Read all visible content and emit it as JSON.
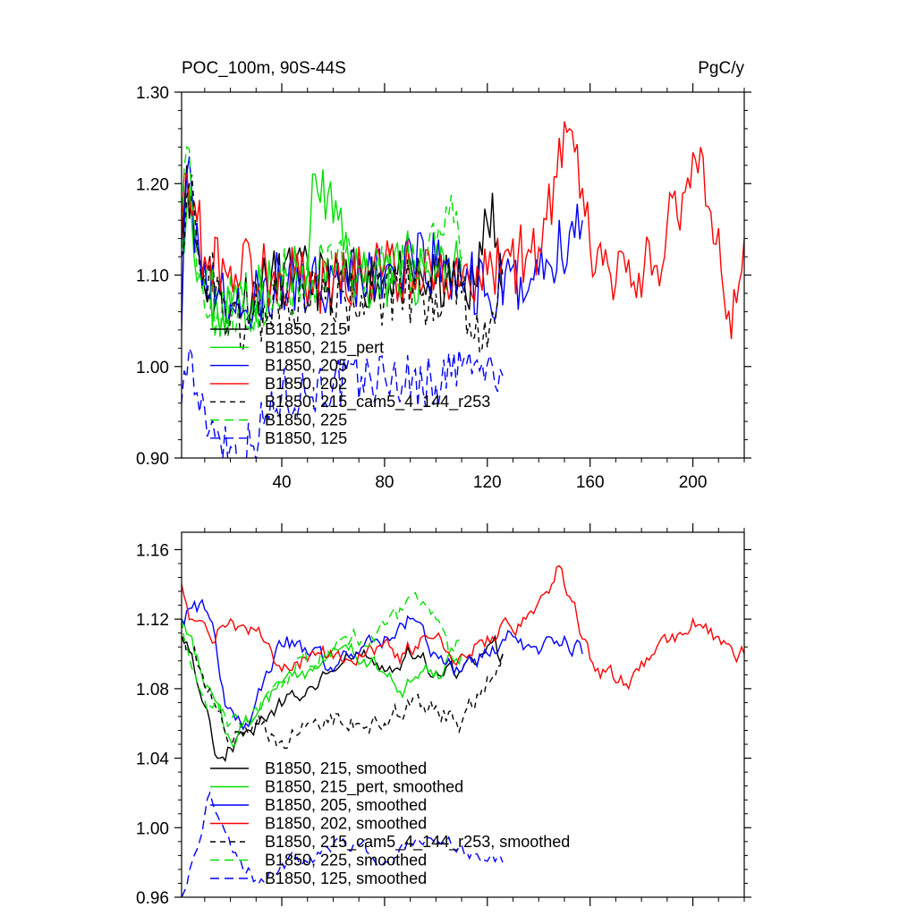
{
  "chart_data": [
    {
      "type": "line",
      "title": "POC_100m, 90S-44S",
      "units": "PgC/y",
      "xlabel": "",
      "ylabel": "",
      "xlim": [
        1,
        220
      ],
      "ylim": [
        0.9,
        1.3
      ],
      "xticks": [
        40,
        80,
        120,
        160,
        200
      ],
      "yticks": [
        0.9,
        1.0,
        1.1,
        1.2,
        1.3
      ],
      "ytick_labels": [
        "0.90",
        "1.00",
        "1.10",
        "1.20",
        "1.30"
      ],
      "legend_position": "bottom-left",
      "series": [
        {
          "name": "B1850, 215",
          "color": "#000000",
          "dash": "solid",
          "length": 126,
          "base": 1.1,
          "amp": 0.035,
          "seed": 11,
          "anchors": [
            [
              1,
              1.13
            ],
            [
              3,
              1.22
            ],
            [
              6,
              1.14
            ],
            [
              12,
              1.08
            ],
            [
              20,
              1.06
            ],
            [
              30,
              1.09
            ],
            [
              45,
              1.1
            ],
            [
              60,
              1.09
            ],
            [
              80,
              1.1
            ],
            [
              100,
              1.09
            ],
            [
              115,
              1.09
            ],
            [
              122,
              1.19
            ],
            [
              126,
              1.08
            ]
          ]
        },
        {
          "name": "B1850, 215_pert",
          "color": "#00e000",
          "dash": "solid",
          "length": 110,
          "base": 1.1,
          "amp": 0.038,
          "seed": 23,
          "anchors": [
            [
              1,
              1.14
            ],
            [
              4,
              1.2
            ],
            [
              8,
              1.1
            ],
            [
              15,
              1.06
            ],
            [
              25,
              1.07
            ],
            [
              40,
              1.09
            ],
            [
              50,
              1.1
            ],
            [
              53,
              1.21
            ],
            [
              70,
              1.1
            ],
            [
              90,
              1.1
            ],
            [
              110,
              1.12
            ]
          ]
        },
        {
          "name": "B1850, 205",
          "color": "#0000ff",
          "dash": "solid",
          "length": 157,
          "base": 1.1,
          "amp": 0.04,
          "seed": 37,
          "anchors": [
            [
              1,
              1.04
            ],
            [
              3,
              1.21
            ],
            [
              8,
              1.12
            ],
            [
              15,
              1.08
            ],
            [
              25,
              1.06
            ],
            [
              40,
              1.09
            ],
            [
              60,
              1.1
            ],
            [
              80,
              1.1
            ],
            [
              100,
              1.11
            ],
            [
              120,
              1.08
            ],
            [
              140,
              1.1
            ],
            [
              157,
              1.16
            ]
          ]
        },
        {
          "name": "B1850, 202",
          "color": "#ff0000",
          "dash": "solid",
          "length": 220,
          "base": 1.105,
          "amp": 0.038,
          "seed": 53,
          "anchors": [
            [
              1,
              1.14
            ],
            [
              3,
              1.21
            ],
            [
              10,
              1.12
            ],
            [
              20,
              1.11
            ],
            [
              40,
              1.1
            ],
            [
              60,
              1.09
            ],
            [
              80,
              1.11
            ],
            [
              100,
              1.1
            ],
            [
              120,
              1.1
            ],
            [
              140,
              1.13
            ],
            [
              152,
              1.26
            ],
            [
              160,
              1.13
            ],
            [
              170,
              1.09
            ],
            [
              185,
              1.11
            ],
            [
              203,
              1.24
            ],
            [
              215,
              1.03
            ],
            [
              220,
              1.14
            ]
          ]
        },
        {
          "name": "B1850, 215_cam5_4_144_r253",
          "color": "#000000",
          "dash": "6,5",
          "length": 126,
          "base": 1.085,
          "amp": 0.04,
          "seed": 71,
          "anchors": [
            [
              1,
              1.12
            ],
            [
              4,
              1.2
            ],
            [
              10,
              1.1
            ],
            [
              20,
              1.05
            ],
            [
              35,
              1.06
            ],
            [
              50,
              1.07
            ],
            [
              65,
              1.07
            ],
            [
              80,
              1.08
            ],
            [
              95,
              1.08
            ],
            [
              110,
              1.08
            ],
            [
              118,
              1.02
            ],
            [
              126,
              1.1
            ]
          ]
        },
        {
          "name": "B1850, 225",
          "color": "#00e000",
          "dash": "10,6",
          "length": 110,
          "base": 1.095,
          "amp": 0.04,
          "seed": 89,
          "anchors": [
            [
              1,
              1.16
            ],
            [
              3,
              1.24
            ],
            [
              8,
              1.1
            ],
            [
              15,
              1.06
            ],
            [
              25,
              1.07
            ],
            [
              40,
              1.09
            ],
            [
              60,
              1.1
            ],
            [
              80,
              1.11
            ],
            [
              100,
              1.12
            ],
            [
              108,
              1.17
            ],
            [
              110,
              1.1
            ]
          ]
        },
        {
          "name": "B1850, 125",
          "color": "#0000ff",
          "dash": "10,6",
          "length": 126,
          "base": 0.985,
          "amp": 0.03,
          "seed": 97,
          "anchors": [
            [
              1,
              0.96
            ],
            [
              4,
              1.02
            ],
            [
              8,
              0.95
            ],
            [
              15,
              0.93
            ],
            [
              24,
              0.9
            ],
            [
              40,
              0.97
            ],
            [
              60,
              0.98
            ],
            [
              80,
              0.99
            ],
            [
              100,
              0.98
            ],
            [
              110,
              1.0
            ],
            [
              126,
              0.99
            ]
          ]
        }
      ]
    },
    {
      "type": "line",
      "title": "",
      "xlabel": "",
      "ylabel": "",
      "xlim": [
        1,
        220
      ],
      "ylim": [
        0.96,
        1.17
      ],
      "xticks": [
        40,
        80,
        120,
        160,
        200
      ],
      "yticks": [
        0.96,
        1.0,
        1.04,
        1.08,
        1.12,
        1.16
      ],
      "ytick_labels": [
        "0.96",
        "1.00",
        "1.04",
        "1.08",
        "1.12",
        "1.16"
      ],
      "legend_position": "bottom-left",
      "series": [
        {
          "name": "B1850, 215, smoothed",
          "color": "#000000",
          "dash": "solid",
          "length": 126,
          "amp": 0.008,
          "seed": 5,
          "anchors": [
            [
              1,
              1.11
            ],
            [
              5,
              1.1
            ],
            [
              10,
              1.07
            ],
            [
              15,
              1.04
            ],
            [
              22,
              1.05
            ],
            [
              30,
              1.06
            ],
            [
              40,
              1.07
            ],
            [
              50,
              1.08
            ],
            [
              60,
              1.09
            ],
            [
              70,
              1.1
            ],
            [
              80,
              1.09
            ],
            [
              90,
              1.1
            ],
            [
              100,
              1.09
            ],
            [
              110,
              1.09
            ],
            [
              118,
              1.1
            ],
            [
              123,
              1.11
            ],
            [
              126,
              1.1
            ]
          ]
        },
        {
          "name": "B1850, 215_pert, smoothed",
          "color": "#00e000",
          "dash": "solid",
          "length": 110,
          "amp": 0.007,
          "seed": 15,
          "anchors": [
            [
              1,
              1.12
            ],
            [
              6,
              1.1
            ],
            [
              12,
              1.08
            ],
            [
              20,
              1.05
            ],
            [
              28,
              1.06
            ],
            [
              38,
              1.08
            ],
            [
              48,
              1.09
            ],
            [
              58,
              1.1
            ],
            [
              68,
              1.1
            ],
            [
              78,
              1.09
            ],
            [
              88,
              1.08
            ],
            [
              95,
              1.09
            ],
            [
              100,
              1.09
            ],
            [
              105,
              1.1
            ],
            [
              110,
              1.1
            ]
          ]
        },
        {
          "name": "B1850, 205, smoothed",
          "color": "#0000ff",
          "dash": "solid",
          "length": 157,
          "amp": 0.008,
          "seed": 25,
          "anchors": [
            [
              1,
              1.12
            ],
            [
              6,
              1.13
            ],
            [
              12,
              1.12
            ],
            [
              18,
              1.07
            ],
            [
              26,
              1.06
            ],
            [
              34,
              1.09
            ],
            [
              42,
              1.11
            ],
            [
              50,
              1.1
            ],
            [
              60,
              1.09
            ],
            [
              70,
              1.1
            ],
            [
              80,
              1.11
            ],
            [
              90,
              1.12
            ],
            [
              100,
              1.1
            ],
            [
              110,
              1.09
            ],
            [
              120,
              1.1
            ],
            [
              130,
              1.11
            ],
            [
              140,
              1.1
            ],
            [
              150,
              1.11
            ],
            [
              157,
              1.1
            ]
          ]
        },
        {
          "name": "B1850, 202, smoothed",
          "color": "#ff0000",
          "dash": "solid",
          "length": 220,
          "amp": 0.008,
          "seed": 35,
          "anchors": [
            [
              1,
              1.14
            ],
            [
              5,
              1.12
            ],
            [
              12,
              1.11
            ],
            [
              20,
              1.12
            ],
            [
              32,
              1.11
            ],
            [
              40,
              1.09
            ],
            [
              55,
              1.1
            ],
            [
              70,
              1.1
            ],
            [
              85,
              1.1
            ],
            [
              100,
              1.11
            ],
            [
              110,
              1.1
            ],
            [
              120,
              1.11
            ],
            [
              135,
              1.12
            ],
            [
              145,
              1.14
            ],
            [
              147,
              1.15
            ],
            [
              153,
              1.13
            ],
            [
              162,
              1.09
            ],
            [
              175,
              1.08
            ],
            [
              185,
              1.1
            ],
            [
              200,
              1.12
            ],
            [
              210,
              1.11
            ],
            [
              220,
              1.1
            ]
          ]
        },
        {
          "name": "B1850, 215_cam5_4_144_r253, smoothed",
          "color": "#000000",
          "dash": "6,5",
          "length": 126,
          "amp": 0.009,
          "seed": 45,
          "anchors": [
            [
              1,
              1.11
            ],
            [
              5,
              1.1
            ],
            [
              12,
              1.08
            ],
            [
              20,
              1.05
            ],
            [
              30,
              1.06
            ],
            [
              40,
              1.05
            ],
            [
              50,
              1.06
            ],
            [
              60,
              1.06
            ],
            [
              70,
              1.06
            ],
            [
              80,
              1.06
            ],
            [
              90,
              1.07
            ],
            [
              100,
              1.07
            ],
            [
              110,
              1.06
            ],
            [
              118,
              1.08
            ],
            [
              126,
              1.1
            ]
          ]
        },
        {
          "name": "B1850, 225, smoothed",
          "color": "#00e000",
          "dash": "10,6",
          "length": 110,
          "amp": 0.008,
          "seed": 55,
          "anchors": [
            [
              1,
              1.12
            ],
            [
              6,
              1.09
            ],
            [
              12,
              1.07
            ],
            [
              20,
              1.06
            ],
            [
              28,
              1.06
            ],
            [
              36,
              1.08
            ],
            [
              45,
              1.09
            ],
            [
              55,
              1.1
            ],
            [
              65,
              1.11
            ],
            [
              75,
              1.11
            ],
            [
              85,
              1.12
            ],
            [
              95,
              1.13
            ],
            [
              100,
              1.12
            ],
            [
              105,
              1.1
            ],
            [
              110,
              1.11
            ]
          ]
        },
        {
          "name": "B1850, 125, smoothed",
          "color": "#0000ff",
          "dash": "10,6",
          "length": 126,
          "amp": 0.006,
          "seed": 65,
          "anchors": [
            [
              1,
              0.96
            ],
            [
              5,
              0.98
            ],
            [
              12,
              1.02
            ],
            [
              20,
              0.99
            ],
            [
              30,
              0.97
            ],
            [
              40,
              0.98
            ],
            [
              50,
              0.98
            ],
            [
              60,
              0.99
            ],
            [
              70,
              0.99
            ],
            [
              80,
              0.98
            ],
            [
              90,
              0.99
            ],
            [
              100,
              0.99
            ],
            [
              110,
              0.99
            ],
            [
              118,
              0.98
            ],
            [
              126,
              0.98
            ]
          ]
        }
      ]
    }
  ]
}
